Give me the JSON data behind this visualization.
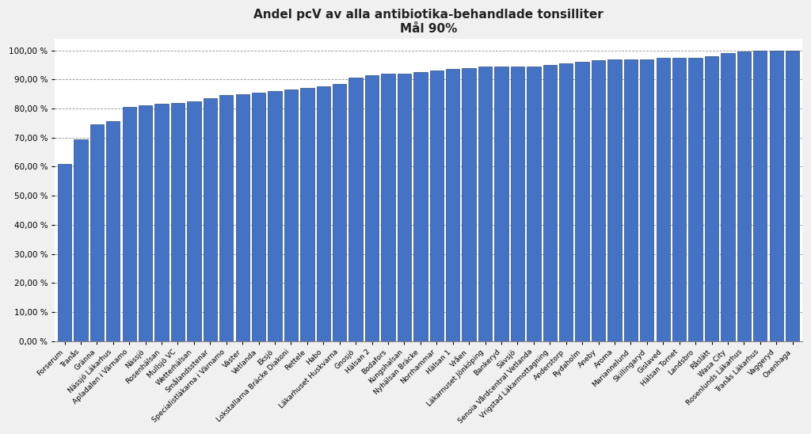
{
  "title_line1": "Andel pcV av alla antibiotika-behandlade tonsilliter",
  "title_line2": "Mål 90%",
  "bar_color": "#4472C4",
  "bar_edge_color": "#2a4a7f",
  "background_color": "#F0F0F0",
  "plot_background": "#FFFFFF",
  "goal_line": 90.0,
  "categories": [
    "Forserum",
    "Tranås",
    "Gränna",
    "Nässjö Läkarhus",
    "Apladalen i Värnamo",
    "Nässjö",
    "Rosenhälsan",
    "Mullsjö VC",
    "Wetterhälsan",
    "Smålandsstenar",
    "Specialistläkarna i Värnamo",
    "Väster",
    "Vetlanda",
    "Eksjö",
    "Lokstallarna Bräcke Diakoni",
    "Rettele",
    "Habo",
    "Läkarhuset Huskvarna",
    "Gnosjö",
    "Hälsan 2",
    "Bodafors",
    "Kungshalsan",
    "Nyhälsan Bräcke",
    "Norrhammar",
    "Hälsan 1",
    "Vråen",
    "Läkarnuset Jönköping",
    "Bankeryd",
    "Sävsjö",
    "Senoia Vårdcentral Vetlanda",
    "Vrigstad Läkarmottagning",
    "Anderstorp",
    "Rydaholm",
    "Aneby",
    "Aroma",
    "Mariannelund",
    "Skillingaryd",
    "Gislaved",
    "Hälsan Tornet",
    "Landsbro",
    "Råslätt",
    "Wasa City",
    "Rosenlunds Läkarhus",
    "Tranås Läkarhus",
    "Vaggeryd",
    "Oxenhaga"
  ],
  "values": [
    61.0,
    69.5,
    74.5,
    75.5,
    80.5,
    81.0,
    81.5,
    82.0,
    82.5,
    83.5,
    84.5,
    85.0,
    85.5,
    86.0,
    86.5,
    87.0,
    87.5,
    88.5,
    90.5,
    91.5,
    92.0,
    92.0,
    92.5,
    93.0,
    93.5,
    94.0,
    94.5,
    94.5,
    94.5,
    94.5,
    95.0,
    95.5,
    96.0,
    96.5,
    97.0,
    97.0,
    97.0,
    97.5,
    97.5,
    97.5,
    98.0,
    99.0,
    99.5,
    100.0,
    100.0,
    100.0
  ],
  "yticks": [
    0,
    10,
    20,
    30,
    40,
    50,
    60,
    70,
    80,
    90,
    100
  ],
  "ylim": [
    0,
    104
  ],
  "title_fontsize": 11,
  "tick_fontsize": 7.5,
  "xtick_fontsize": 6.5
}
